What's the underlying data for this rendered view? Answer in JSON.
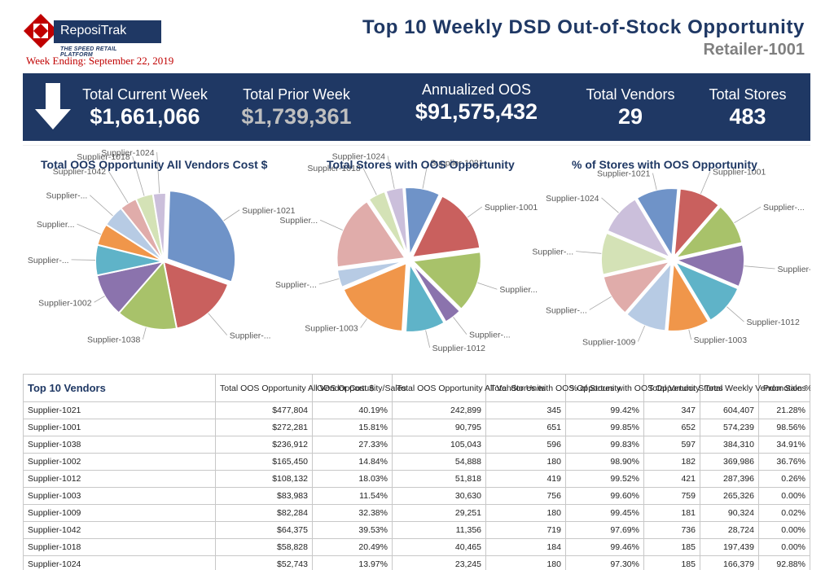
{
  "header": {
    "logo_name": "ReposiTrak",
    "logo_tagline": "THE SPEED RETAIL PLATFORM",
    "week_ending": "Week Ending: September 22, 2019",
    "title": "Top 10 Weekly DSD Out-of-Stock Opportunity",
    "retailer": "Retailer-1001"
  },
  "kpis": {
    "trend_icon": "down-arrow-icon",
    "current_week": {
      "label": "Total Current Week",
      "value": "$1,661,066"
    },
    "prior_week": {
      "label": "Total Prior Week",
      "value": "$1,739,361"
    },
    "annualized": {
      "label": "Annualized OOS",
      "value": "$91,575,432"
    },
    "vendors": {
      "label": "Total Vendors",
      "value": "29"
    },
    "stores": {
      "label": "Total Stores",
      "value": "483"
    }
  },
  "chart_data": [
    {
      "type": "pie",
      "title": "Total OOS Opportunity All Vendors Cost $",
      "slices": [
        {
          "label": "Supplier-1021",
          "value": 29,
          "color": "#6f93c8"
        },
        {
          "label": "Supplier-...",
          "value": 16,
          "color": "#c9605e"
        },
        {
          "label": "Supplier-1038",
          "value": 14,
          "color": "#a8c26a"
        },
        {
          "label": "Supplier-1002",
          "value": 10,
          "color": "#8b73ad"
        },
        {
          "label": "Supplier-...",
          "value": 7,
          "color": "#5fb3c8"
        },
        {
          "label": "Supplier...",
          "value": 5,
          "color": "#f0964a"
        },
        {
          "label": "Supplier-...",
          "value": 5,
          "color": "#b7cbe4"
        },
        {
          "label": "Supplier-1042",
          "value": 4,
          "color": "#e0acaa"
        },
        {
          "label": "Supplier-1018",
          "value": 4,
          "color": "#d4e2b6"
        },
        {
          "label": "Supplier-1024",
          "value": 3,
          "color": "#cbbfdb"
        }
      ]
    },
    {
      "type": "pie",
      "title": "Total Stores with OOS Opportunity",
      "slices": [
        {
          "label": "Supplier-1001",
          "value": 15,
          "color": "#c9605e"
        },
        {
          "label": "Supplier...",
          "value": 14,
          "color": "#a8c26a"
        },
        {
          "label": "Supplier-...",
          "value": 4,
          "color": "#8b73ad"
        },
        {
          "label": "Supplier-1012",
          "value": 9,
          "color": "#5fb3c8"
        },
        {
          "label": "Supplier-1003",
          "value": 17,
          "color": "#f0964a"
        },
        {
          "label": "Supplier-...",
          "value": 4,
          "color": "#b7cbe4"
        },
        {
          "label": "Supplier...",
          "value": 17,
          "color": "#e0acaa"
        },
        {
          "label": "Supplier-1018",
          "value": 4,
          "color": "#d4e2b6"
        },
        {
          "label": "Supplier-1024",
          "value": 4,
          "color": "#cbbfdb"
        },
        {
          "label": "Supplier-1021",
          "value": 8,
          "color": "#6f93c8"
        }
      ]
    },
    {
      "type": "pie",
      "title": "% of Stores with OOS Opportunity",
      "slices": [
        {
          "label": "Supplier-1001",
          "value": 10,
          "color": "#c9605e"
        },
        {
          "label": "Supplier-...",
          "value": 10,
          "color": "#a8c26a"
        },
        {
          "label": "Supplier-...",
          "value": 10,
          "color": "#8b73ad"
        },
        {
          "label": "Supplier-1012",
          "value": 10,
          "color": "#5fb3c8"
        },
        {
          "label": "Supplier-1003",
          "value": 10,
          "color": "#f0964a"
        },
        {
          "label": "Supplier-1009",
          "value": 10,
          "color": "#b7cbe4"
        },
        {
          "label": "Supplier-...",
          "value": 10,
          "color": "#e0acaa"
        },
        {
          "label": "Supplier-...",
          "value": 10,
          "color": "#d4e2b6"
        },
        {
          "label": "Supplier-1024",
          "value": 10,
          "color": "#cbbfdb"
        },
        {
          "label": "Supplier-1021",
          "value": 10,
          "color": "#6f93c8"
        }
      ]
    }
  ],
  "table": {
    "columns": [
      "Top 10 Vendors",
      "Total OOS Opportunity All Vendor Cost $",
      "OOS Opportunity/Sales",
      "Total OOS Opportunity All Vendor Units",
      "Total Stores with OOS Opportunity",
      "% of Stores with OOS Opportunity",
      "Total Vendor Stores",
      "Total Weekly Vendor Sales",
      "Promotion % of Sales"
    ],
    "rows": [
      [
        "Supplier-1021",
        "$477,804",
        "40.19%",
        "242,899",
        "345",
        "99.42%",
        "347",
        "604,407",
        "21.28%"
      ],
      [
        "Supplier-1001",
        "$272,281",
        "15.81%",
        "90,795",
        "651",
        "99.85%",
        "652",
        "574,239",
        "98.56%"
      ],
      [
        "Supplier-1038",
        "$236,912",
        "27.33%",
        "105,043",
        "596",
        "99.83%",
        "597",
        "384,310",
        "34.91%"
      ],
      [
        "Supplier-1002",
        "$165,450",
        "14.84%",
        "54,888",
        "180",
        "98.90%",
        "182",
        "369,986",
        "36.76%"
      ],
      [
        "Supplier-1012",
        "$108,132",
        "18.03%",
        "51,818",
        "419",
        "99.52%",
        "421",
        "287,396",
        "0.26%"
      ],
      [
        "Supplier-1003",
        "$83,983",
        "11.54%",
        "30,630",
        "756",
        "99.60%",
        "759",
        "265,326",
        "0.00%"
      ],
      [
        "Supplier-1009",
        "$82,284",
        "32.38%",
        "29,251",
        "180",
        "99.45%",
        "181",
        "90,324",
        "0.02%"
      ],
      [
        "Supplier-1042",
        "$64,375",
        "39.53%",
        "11,356",
        "719",
        "97.69%",
        "736",
        "28,724",
        "0.00%"
      ],
      [
        "Supplier-1018",
        "$58,828",
        "20.49%",
        "40,465",
        "184",
        "99.46%",
        "185",
        "197,439",
        "0.00%"
      ],
      [
        "Supplier-1024",
        "$52,743",
        "13.97%",
        "23,245",
        "180",
        "97.30%",
        "185",
        "166,379",
        "92.88%"
      ]
    ]
  }
}
